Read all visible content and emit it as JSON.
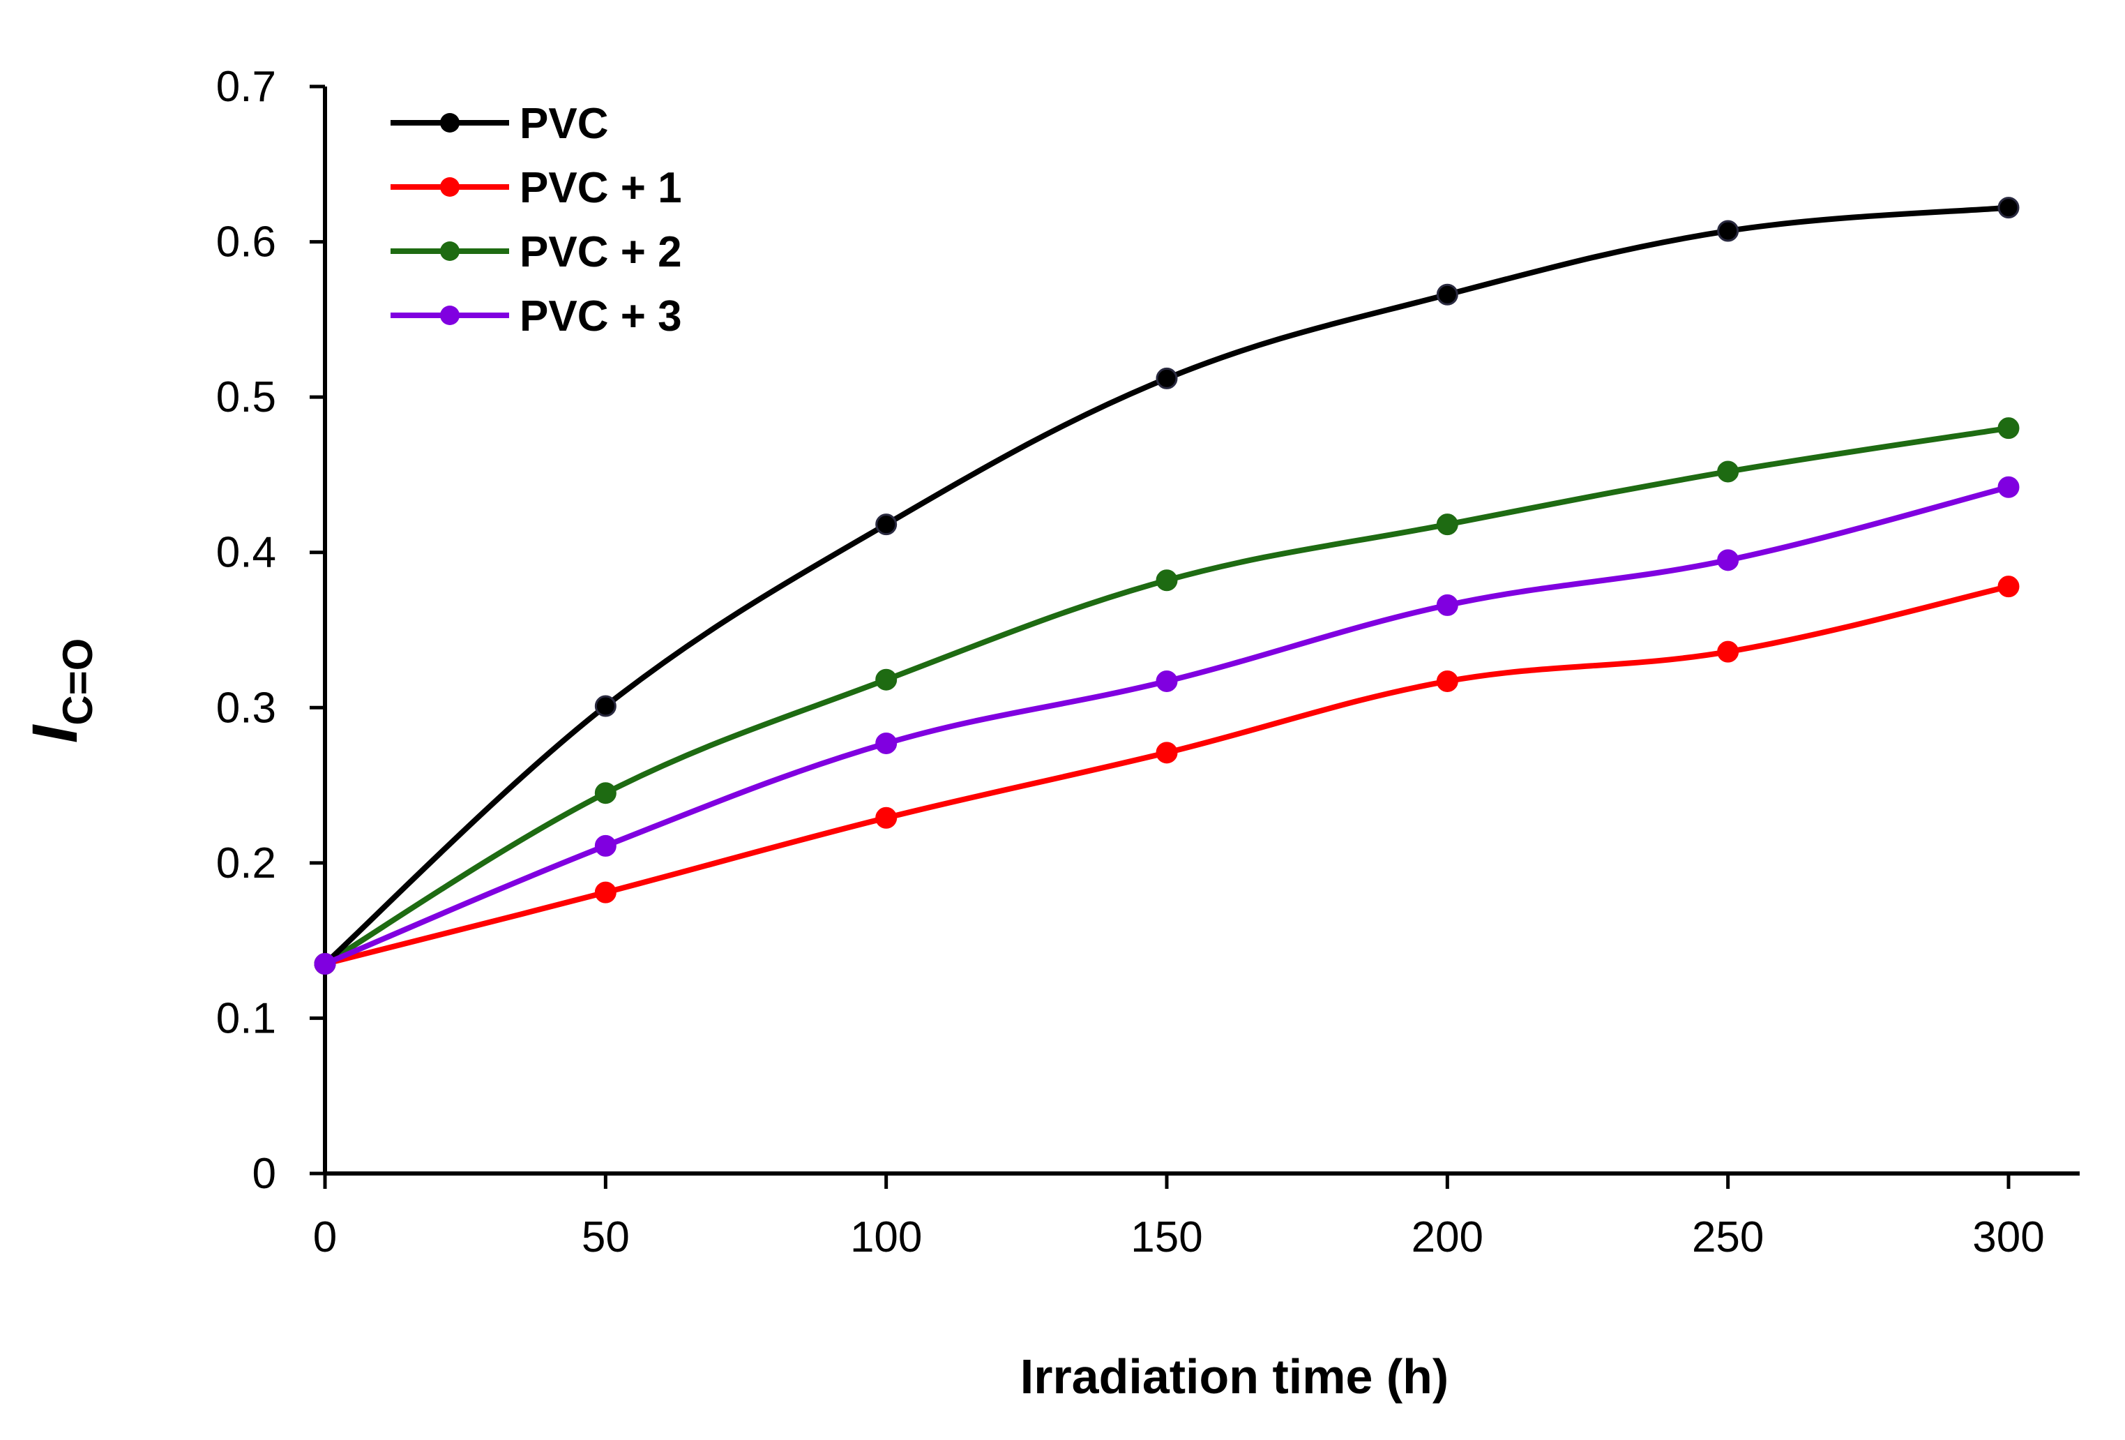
{
  "chart_data": {
    "type": "line",
    "title": "",
    "xlabel": "Irradiation time (h)",
    "ylabel": {
      "main": "I",
      "subscript": "C=O"
    },
    "x": [
      0,
      50,
      100,
      150,
      200,
      250,
      300
    ],
    "xlim": [
      0,
      320
    ],
    "ylim": [
      0,
      0.7
    ],
    "xticks": [
      0,
      50,
      100,
      150,
      200,
      250,
      300
    ],
    "yticks": [
      0,
      0.1,
      0.2,
      0.3,
      0.4,
      0.5,
      0.6,
      0.7
    ],
    "xtick_labels": [
      "0",
      "50",
      "100",
      "150",
      "200",
      "250",
      "300"
    ],
    "ytick_labels": [
      "0",
      "0.1",
      "0.2",
      "0.3",
      "0.4",
      "0.5",
      "0.6",
      "0.7"
    ],
    "grid": false,
    "legend_position": "top-left",
    "series": [
      {
        "name": "PVC",
        "color": "#000000",
        "values": [
          0.135,
          0.301,
          0.418,
          0.512,
          0.566,
          0.607,
          0.622
        ]
      },
      {
        "name": "PVC + 1",
        "color": "#ff0000",
        "values": [
          0.135,
          0.181,
          0.229,
          0.271,
          0.317,
          0.336,
          0.378
        ]
      },
      {
        "name": "PVC + 2",
        "color": "#1e6b12",
        "values": [
          0.135,
          0.245,
          0.318,
          0.382,
          0.418,
          0.452,
          0.48
        ]
      },
      {
        "name": "PVC + 3",
        "color": "#8000e0",
        "values": [
          0.135,
          0.211,
          0.277,
          0.317,
          0.366,
          0.395,
          0.442
        ]
      }
    ]
  }
}
